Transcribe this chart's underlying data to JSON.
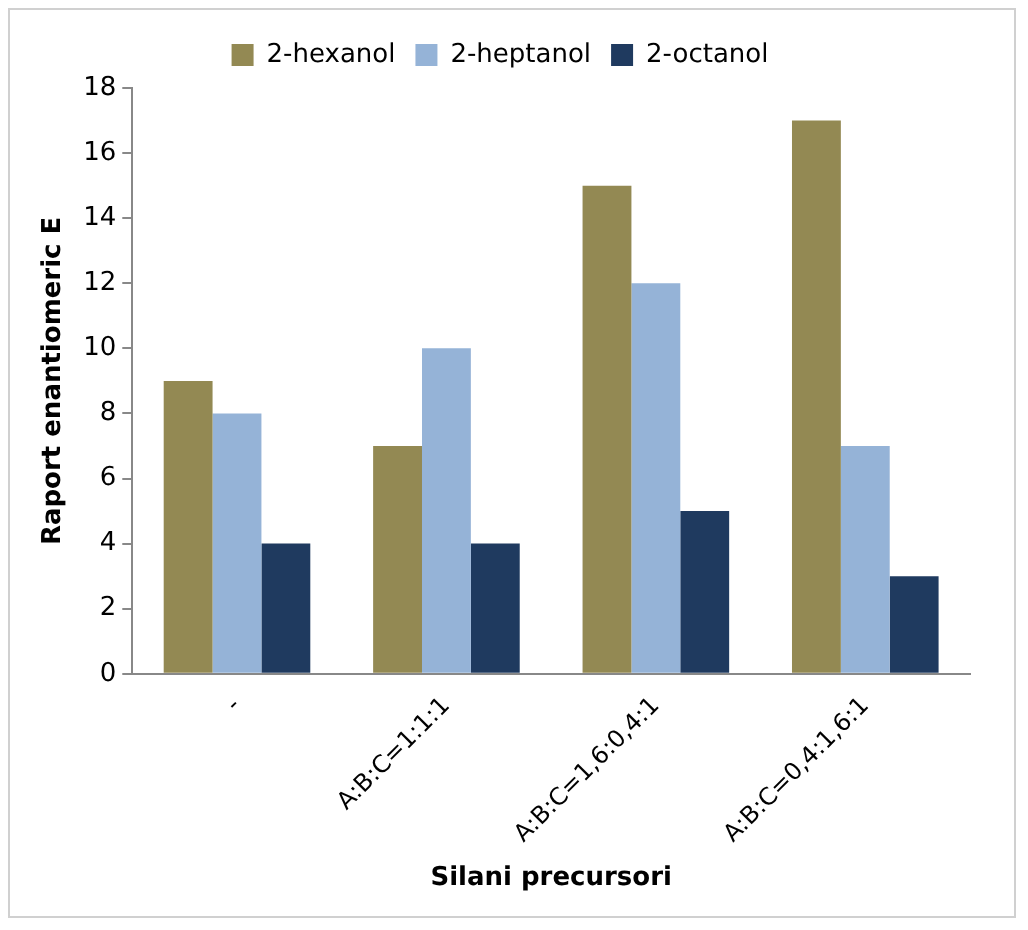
{
  "chart_data": {
    "type": "bar",
    "xlabel": "Silani precursori",
    "ylabel": "Raport enantiomeric E",
    "categories": [
      "-",
      "A:B:C=1:1:1",
      "A:B:C=1,6:0,4:1",
      "A:B:C=0,4:1,6:1"
    ],
    "series": [
      {
        "name": "2-hexanol",
        "color": "#938953",
        "values": [
          9,
          7,
          15,
          17
        ]
      },
      {
        "name": "2-heptanol",
        "color": "#95b3d7",
        "values": [
          8,
          10,
          12,
          7
        ]
      },
      {
        "name": "2-octanol",
        "color": "#1f3a5f",
        "values": [
          4,
          4,
          5,
          3
        ]
      }
    ],
    "ylim": [
      0,
      18
    ],
    "yticks": [
      0,
      2,
      4,
      6,
      8,
      10,
      12,
      14,
      16,
      18
    ],
    "grid": false,
    "legend": "top"
  }
}
